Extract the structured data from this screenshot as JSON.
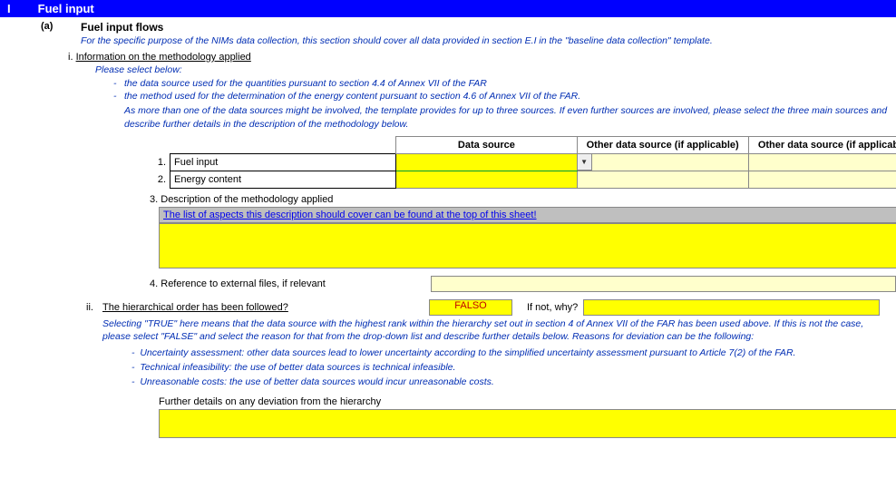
{
  "header": {
    "index": "I",
    "title": "Fuel input"
  },
  "section_a": {
    "label": "(a)",
    "title": "Fuel input flows",
    "subtitle": "For the specific purpose of the NIMs data collection, this section should cover all data provided in section E.I in the \"baseline data collection\" template."
  },
  "sub_i": {
    "index": "i.",
    "title": "Information on the methodology applied",
    "select_note": "Please select below:",
    "bullets": [
      "the data source used for the quantities pursuant to section 4.4 of Annex VII of the FAR",
      "the method used for the determination of the energy content pursuant to section 4.6 of Annex VII of the FAR."
    ],
    "extra_note": "As more than one of the data sources might be involved, the template provides for up to three sources. If even further sources are involved, please select the three main sources and describe further details in the description of the methodology below."
  },
  "table": {
    "headers": {
      "ds": "Data source",
      "other1": "Other data source (if applicable)",
      "other2": "Other data source (if applicable)"
    },
    "rows": [
      {
        "num": "1.",
        "label": "Fuel input"
      },
      {
        "num": "2.",
        "label": "Energy content"
      }
    ]
  },
  "desc": {
    "num": "3.",
    "label": "Description of the methodology applied",
    "hint": "The list of aspects this description should cover can be found at the top of this sheet!"
  },
  "ref": {
    "num": "4.",
    "label": "Reference to external files, if relevant"
  },
  "hier": {
    "index": "ii.",
    "question": "The hierarchical order has been followed?",
    "value": "FALSO",
    "ifnot": "If not, why?",
    "note": "Selecting \"TRUE\" here means that the data source with the highest rank within the hierarchy set out in section 4 of Annex VII of the FAR has been used above. If this is not the case, please select \"FALSE\" and select the reason for that from the drop-down list and describe further details below. Reasons for deviation can be the following:",
    "bullets": [
      "Uncertainty assessment: other data sources lead to lower uncertainty according to the simplified uncertainty assessment pursuant to Article 7(2) of the FAR.",
      "Technical infeasibility: the use of better data sources is technical infeasible.",
      "Unreasonable costs: the use of better data sources would incur unreasonable costs."
    ],
    "further": "Further details on any deviation from the hierarchy"
  }
}
